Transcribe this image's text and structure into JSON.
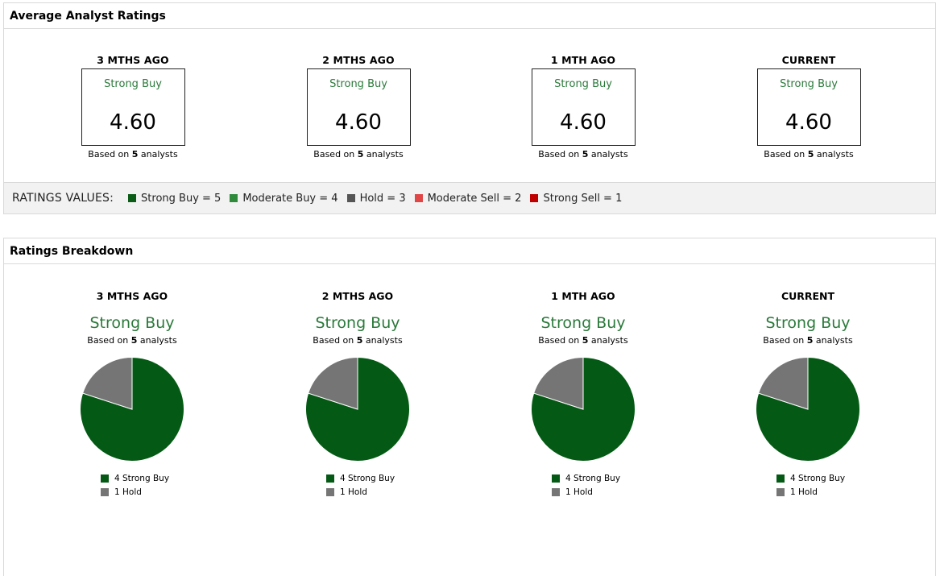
{
  "avg_panel": {
    "title": "Average Analyst Ratings",
    "columns": [
      {
        "label": "3 MTHS AGO",
        "rating": "Strong Buy",
        "value": "4.60",
        "based_prefix": "Based on",
        "count": "5",
        "based_suffix": "analysts"
      },
      {
        "label": "2 MTHS AGO",
        "rating": "Strong Buy",
        "value": "4.60",
        "based_prefix": "Based on",
        "count": "5",
        "based_suffix": "analysts"
      },
      {
        "label": "1 MTH AGO",
        "rating": "Strong Buy",
        "value": "4.60",
        "based_prefix": "Based on",
        "count": "5",
        "based_suffix": "analysts"
      },
      {
        "label": "CURRENT",
        "rating": "Strong Buy",
        "value": "4.60",
        "based_prefix": "Based on",
        "count": "5",
        "based_suffix": "analysts"
      }
    ],
    "legend": {
      "title": "RATINGS VALUES:",
      "items": [
        {
          "label": "Strong Buy = 5",
          "color": "#0a5c17"
        },
        {
          "label": "Moderate Buy = 4",
          "color": "#2f8a3c"
        },
        {
          "label": "Hold = 3",
          "color": "#555555"
        },
        {
          "label": "Moderate Sell = 2",
          "color": "#e04646"
        },
        {
          "label": "Strong Sell = 1",
          "color": "#c00000"
        }
      ]
    }
  },
  "breakdown_panel": {
    "title": "Ratings Breakdown",
    "columns": [
      {
        "label": "3 MTHS AGO",
        "rating": "Strong Buy",
        "based_prefix": "Based on",
        "count": "5",
        "based_suffix": "analysts",
        "slices": [
          {
            "label": "4 Strong Buy",
            "value": 4,
            "color": "#045a14"
          },
          {
            "label": "1 Hold",
            "value": 1,
            "color": "#757575"
          }
        ]
      },
      {
        "label": "2 MTHS AGO",
        "rating": "Strong Buy",
        "based_prefix": "Based on",
        "count": "5",
        "based_suffix": "analysts",
        "slices": [
          {
            "label": "4 Strong Buy",
            "value": 4,
            "color": "#045a14"
          },
          {
            "label": "1 Hold",
            "value": 1,
            "color": "#757575"
          }
        ]
      },
      {
        "label": "1 MTH AGO",
        "rating": "Strong Buy",
        "based_prefix": "Based on",
        "count": "5",
        "based_suffix": "analysts",
        "slices": [
          {
            "label": "4 Strong Buy",
            "value": 4,
            "color": "#045a14"
          },
          {
            "label": "1 Hold",
            "value": 1,
            "color": "#757575"
          }
        ]
      },
      {
        "label": "CURRENT",
        "rating": "Strong Buy",
        "based_prefix": "Based on",
        "count": "5",
        "based_suffix": "analysts",
        "slices": [
          {
            "label": "4 Strong Buy",
            "value": 4,
            "color": "#045a14"
          },
          {
            "label": "1 Hold",
            "value": 1,
            "color": "#757575"
          }
        ]
      }
    ]
  },
  "colors": {
    "rating_text": "#2a7a3a",
    "border": "#d9d9d9",
    "legend_bg": "#f2f2f2"
  },
  "chart_data": [
    {
      "type": "pie",
      "categories": [
        "Strong Buy",
        "Hold"
      ],
      "values": [
        4,
        1
      ]
    },
    {
      "type": "pie",
      "categories": [
        "Strong Buy",
        "Hold"
      ],
      "values": [
        4,
        1
      ]
    },
    {
      "type": "pie",
      "categories": [
        "Strong Buy",
        "Hold"
      ],
      "values": [
        4,
        1
      ]
    },
    {
      "type": "pie",
      "categories": [
        "Strong Buy",
        "Hold"
      ],
      "values": [
        4,
        1
      ]
    }
  ]
}
